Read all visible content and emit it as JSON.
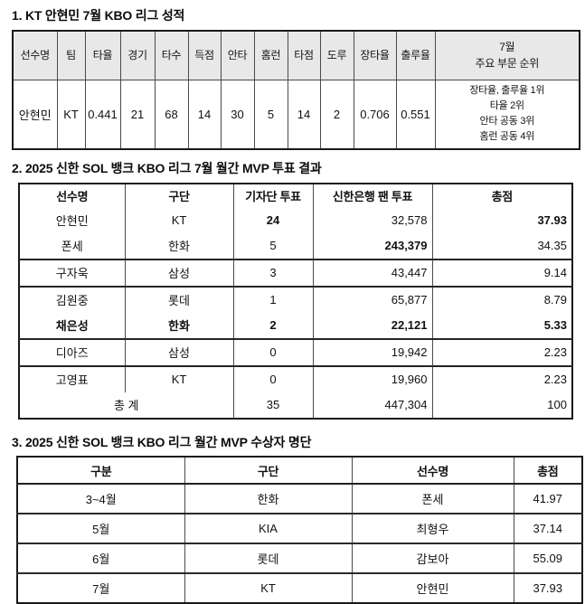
{
  "colors": {
    "table1_header_bg": "#e8e8e8",
    "border": "#4a4a4a",
    "text": "#111111",
    "background": "#ffffff"
  },
  "section1": {
    "title": "1. KT 안현민 7월 KBO 리그 성적",
    "table": {
      "headers": [
        "선수명",
        "팀",
        "타율",
        "경기",
        "타수",
        "득점",
        "안타",
        "홈런",
        "타점",
        "도루",
        "장타율",
        "출루율",
        [
          "7월",
          "주요 부문 순위"
        ]
      ],
      "row": [
        "안현민",
        "KT",
        "0.441",
        "21",
        "68",
        "14",
        "30",
        "5",
        "14",
        "2",
        "0.706",
        "0.551"
      ],
      "rank_lines": [
        "장타율, 출루율 1위",
        "타율 2위",
        "안타 공동 3위",
        "홈런 공동 4위"
      ]
    }
  },
  "section2": {
    "title": "2. 2025 신한 SOL 뱅크 KBO 리그 7월 월간 MVP 투표 결과",
    "table": {
      "headers": [
        "선수명",
        "구단",
        "기자단 투표",
        "신한은행 팬 투표",
        "총점"
      ],
      "rows": [
        {
          "cells": [
            "안현민",
            "KT",
            "24",
            "32,578",
            "37.93"
          ],
          "bold_cols": [
            2,
            4
          ],
          "sep_below": false
        },
        {
          "cells": [
            "폰세",
            "한화",
            "5",
            "243,379",
            "34.35"
          ],
          "bold_cols": [
            3
          ],
          "sep_below": true
        },
        {
          "cells": [
            "구자욱",
            "삼성",
            "3",
            "43,447",
            "9.14"
          ],
          "bold_cols": [],
          "sep_below": true
        },
        {
          "cells": [
            "김원중",
            "롯데",
            "1",
            "65,877",
            "8.79"
          ],
          "bold_cols": [],
          "sep_below": false
        },
        {
          "cells": [
            "채은성",
            "한화",
            "2",
            "22,121",
            "5.33"
          ],
          "bold_cols": [
            0,
            1,
            2,
            3,
            4
          ],
          "sep_below": true
        },
        {
          "cells": [
            "디아즈",
            "삼성",
            "0",
            "19,942",
            "2.23"
          ],
          "bold_cols": [],
          "sep_below": true
        },
        {
          "cells": [
            "고영표",
            "KT",
            "0",
            "19,960",
            "2.23"
          ],
          "bold_cols": [],
          "sep_below": false
        }
      ],
      "total_row": {
        "label": "총 계",
        "cells": [
          "35",
          "447,304",
          "100"
        ]
      }
    }
  },
  "section3": {
    "title": "3. 2025 신한 SOL 뱅크 KBO 리그 월간 MVP 수상자 명단",
    "table": {
      "headers": [
        "구분",
        "구단",
        "선수명",
        "총점"
      ],
      "rows": [
        [
          "3~4월",
          "한화",
          "폰세",
          "41.97"
        ],
        [
          "5월",
          "KIA",
          "최형우",
          "37.14"
        ],
        [
          "6월",
          "롯데",
          "감보아",
          "55.09"
        ],
        [
          "7월",
          "KT",
          "안현민",
          "37.93"
        ]
      ]
    }
  }
}
